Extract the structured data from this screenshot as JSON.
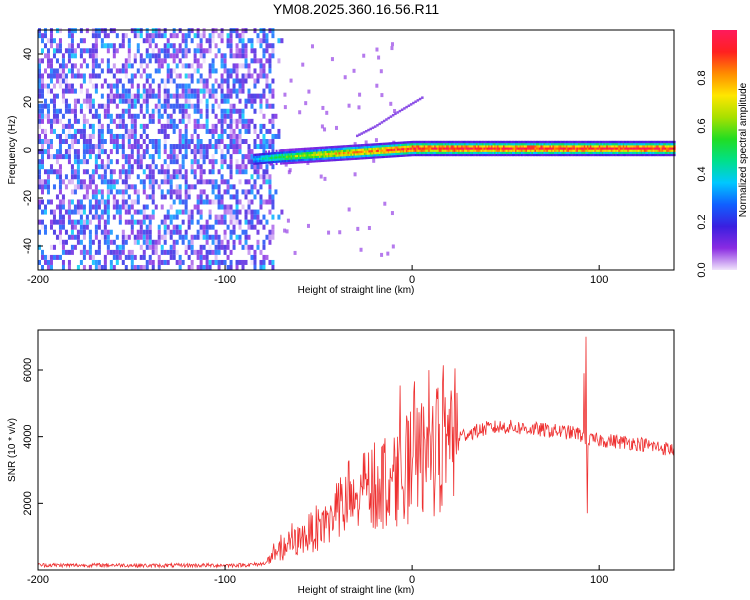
{
  "title": "YM08.2025.360.16.56.R11",
  "chart_data": [
    {
      "type": "heatmap",
      "xlabel": "Height of straight line (km)",
      "ylabel": "Frequency (Hz)",
      "xlim": [
        -200,
        140
      ],
      "ylim": [
        -50,
        50
      ],
      "xticks": [
        -200,
        -100,
        0,
        100
      ],
      "yticks": [
        -40,
        -20,
        0,
        20,
        40
      ],
      "colorbar": {
        "label": "Normalized spectral amplitude",
        "range": [
          0,
          1
        ],
        "ticks": [
          "0.0",
          "0.2",
          "0.4",
          "0.6",
          "0.8"
        ],
        "colors": [
          "#f0e4fb",
          "#8a2be2",
          "#3a1fe0",
          "#1060ff",
          "#00c8ff",
          "#00e08a",
          "#22dd22",
          "#a8e000",
          "#ffe600",
          "#ff8c00",
          "#ff2020",
          "#ff1a5c"
        ]
      },
      "features": {
        "noise_region_x": [
          -200,
          -75
        ],
        "noise_region_amplitude": 0.15,
        "signal_line": {
          "x": [
            -85,
            -70,
            -50,
            -30,
            -10,
            0,
            140
          ],
          "freq_hz": [
            -4,
            -3,
            -2,
            -1,
            0,
            0.5,
            0.5
          ],
          "amplitude": [
            0.35,
            0.55,
            0.7,
            0.8,
            0.9,
            0.95,
            0.95
          ]
        },
        "faint_branch": {
          "x": [
            -30,
            -20,
            -10,
            5
          ],
          "freq_hz": [
            6,
            10,
            15,
            22
          ]
        }
      }
    },
    {
      "type": "line",
      "xlabel": "Height of straight line (km)",
      "ylabel": "SNR (10 * v/v)",
      "xlim": [
        -200,
        140
      ],
      "ylim": [
        0,
        7200
      ],
      "xticks": [
        -200,
        -100,
        0,
        100
      ],
      "yticks": [
        2000,
        4000,
        6000
      ],
      "color": "#ee3030",
      "series": [
        {
          "name": "SNR",
          "x": [
            -200,
            -180,
            -160,
            -140,
            -120,
            -100,
            -90,
            -80,
            -75,
            -70,
            -60,
            -50,
            -40,
            -30,
            -20,
            -10,
            0,
            10,
            20,
            30,
            40,
            50,
            60,
            70,
            80,
            88,
            92,
            94,
            96,
            100,
            110,
            120,
            130,
            140
          ],
          "y": [
            150,
            140,
            150,
            130,
            140,
            140,
            150,
            180,
            350,
            600,
            900,
            1300,
            1700,
            2100,
            2500,
            2800,
            3100,
            3500,
            3900,
            4100,
            4250,
            4300,
            4250,
            4200,
            4150,
            4100,
            4000,
            3900,
            3900,
            3900,
            3850,
            3800,
            3700,
            3600
          ]
        }
      ],
      "spikes": [
        {
          "x": 93,
          "y": 7000
        },
        {
          "x": 92,
          "y": 5900
        },
        {
          "x": 93.5,
          "y": 1700
        }
      ]
    }
  ]
}
